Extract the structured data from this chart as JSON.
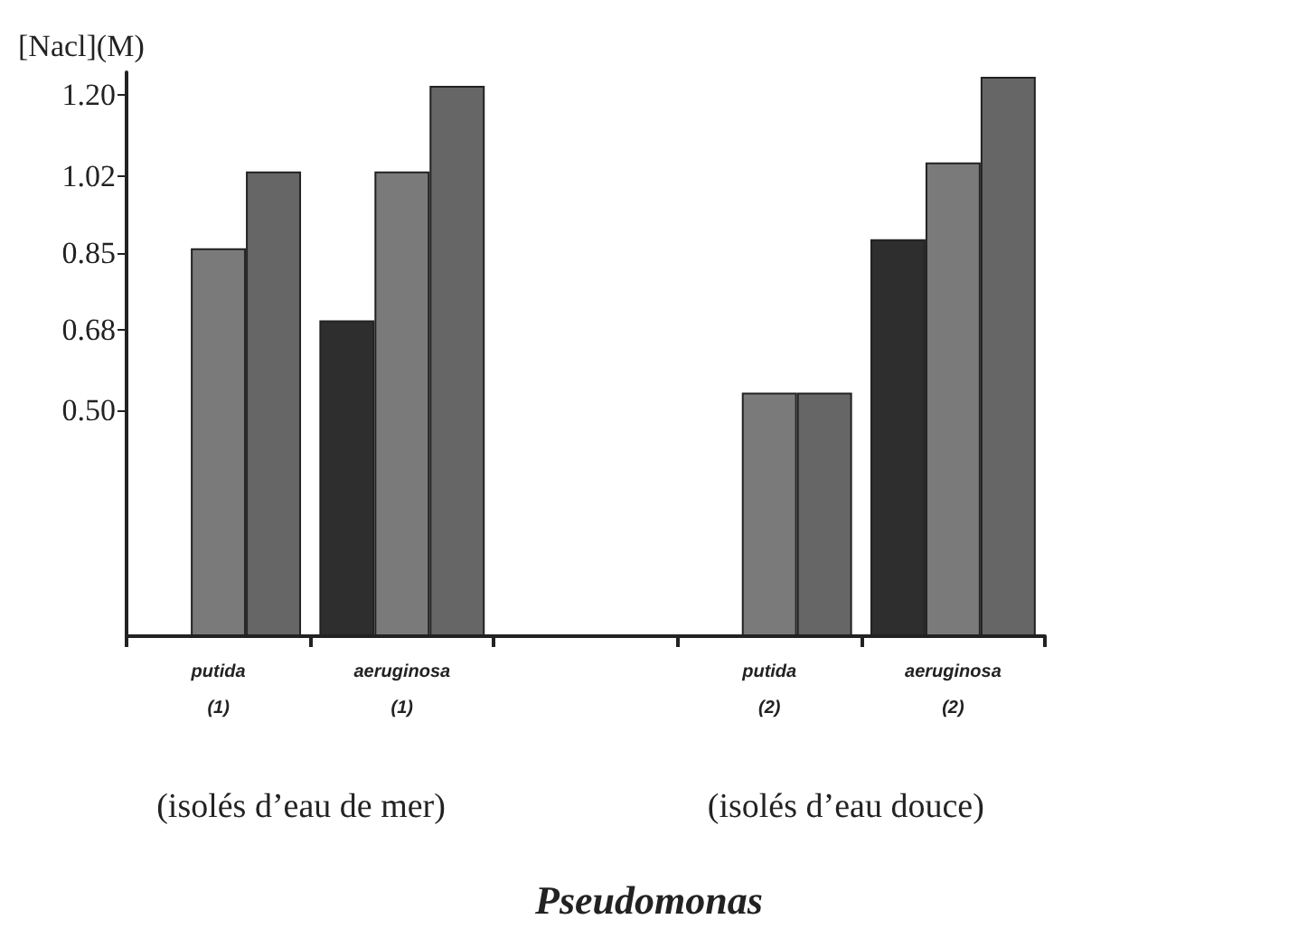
{
  "chart_data": {
    "type": "bar",
    "title": "Pseudomonas",
    "ylabel": "[Nacl](M)",
    "categories": [
      "putida (1)",
      "aeruginosa (1)",
      null,
      "putida (2)",
      "aeruginosa (2)"
    ],
    "series": [
      {
        "color": "#2e2e2e",
        "values": [
          null,
          0.7,
          null,
          null,
          0.88
        ]
      },
      {
        "color": "#7a7a7a",
        "values": [
          0.86,
          1.03,
          null,
          0.54,
          1.05
        ]
      },
      {
        "color": "#666666",
        "values": [
          1.03,
          1.22,
          null,
          0.54,
          1.24
        ]
      }
    ],
    "ylim": [
      0,
      1.25
    ],
    "yticks": [
      {
        "value": 0.5,
        "label": "0.50"
      },
      0.68,
      0.85,
      1.02,
      {
        "value": 1.2,
        "label": "1.20"
      }
    ],
    "annotations": [
      "(isolés d’eau de mer)",
      "(isolés d’eau douce)"
    ]
  }
}
